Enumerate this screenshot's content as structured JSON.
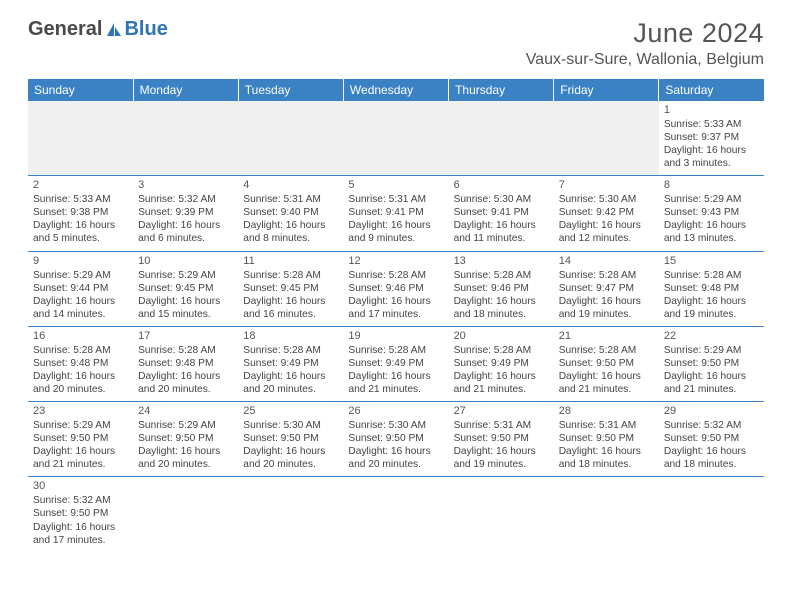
{
  "logo": {
    "text1": "General",
    "text2": "Blue"
  },
  "header": {
    "month_title": "June 2024",
    "location": "Vaux-sur-Sure, Wallonia, Belgium"
  },
  "colors": {
    "header_bg": "#3a82c4",
    "header_text": "#ffffff",
    "cell_border": "#3a82c4",
    "blank_bg": "#f0f0f0",
    "text": "#444444",
    "logo_gray": "#4a4a4a",
    "logo_blue": "#2d74b8"
  },
  "daynames": [
    "Sunday",
    "Monday",
    "Tuesday",
    "Wednesday",
    "Thursday",
    "Friday",
    "Saturday"
  ],
  "weeks": [
    [
      null,
      null,
      null,
      null,
      null,
      null,
      {
        "n": "1",
        "sr": "Sunrise: 5:33 AM",
        "ss": "Sunset: 9:37 PM",
        "d1": "Daylight: 16 hours",
        "d2": "and 3 minutes."
      }
    ],
    [
      {
        "n": "2",
        "sr": "Sunrise: 5:33 AM",
        "ss": "Sunset: 9:38 PM",
        "d1": "Daylight: 16 hours",
        "d2": "and 5 minutes."
      },
      {
        "n": "3",
        "sr": "Sunrise: 5:32 AM",
        "ss": "Sunset: 9:39 PM",
        "d1": "Daylight: 16 hours",
        "d2": "and 6 minutes."
      },
      {
        "n": "4",
        "sr": "Sunrise: 5:31 AM",
        "ss": "Sunset: 9:40 PM",
        "d1": "Daylight: 16 hours",
        "d2": "and 8 minutes."
      },
      {
        "n": "5",
        "sr": "Sunrise: 5:31 AM",
        "ss": "Sunset: 9:41 PM",
        "d1": "Daylight: 16 hours",
        "d2": "and 9 minutes."
      },
      {
        "n": "6",
        "sr": "Sunrise: 5:30 AM",
        "ss": "Sunset: 9:41 PM",
        "d1": "Daylight: 16 hours",
        "d2": "and 11 minutes."
      },
      {
        "n": "7",
        "sr": "Sunrise: 5:30 AM",
        "ss": "Sunset: 9:42 PM",
        "d1": "Daylight: 16 hours",
        "d2": "and 12 minutes."
      },
      {
        "n": "8",
        "sr": "Sunrise: 5:29 AM",
        "ss": "Sunset: 9:43 PM",
        "d1": "Daylight: 16 hours",
        "d2": "and 13 minutes."
      }
    ],
    [
      {
        "n": "9",
        "sr": "Sunrise: 5:29 AM",
        "ss": "Sunset: 9:44 PM",
        "d1": "Daylight: 16 hours",
        "d2": "and 14 minutes."
      },
      {
        "n": "10",
        "sr": "Sunrise: 5:29 AM",
        "ss": "Sunset: 9:45 PM",
        "d1": "Daylight: 16 hours",
        "d2": "and 15 minutes."
      },
      {
        "n": "11",
        "sr": "Sunrise: 5:28 AM",
        "ss": "Sunset: 9:45 PM",
        "d1": "Daylight: 16 hours",
        "d2": "and 16 minutes."
      },
      {
        "n": "12",
        "sr": "Sunrise: 5:28 AM",
        "ss": "Sunset: 9:46 PM",
        "d1": "Daylight: 16 hours",
        "d2": "and 17 minutes."
      },
      {
        "n": "13",
        "sr": "Sunrise: 5:28 AM",
        "ss": "Sunset: 9:46 PM",
        "d1": "Daylight: 16 hours",
        "d2": "and 18 minutes."
      },
      {
        "n": "14",
        "sr": "Sunrise: 5:28 AM",
        "ss": "Sunset: 9:47 PM",
        "d1": "Daylight: 16 hours",
        "d2": "and 19 minutes."
      },
      {
        "n": "15",
        "sr": "Sunrise: 5:28 AM",
        "ss": "Sunset: 9:48 PM",
        "d1": "Daylight: 16 hours",
        "d2": "and 19 minutes."
      }
    ],
    [
      {
        "n": "16",
        "sr": "Sunrise: 5:28 AM",
        "ss": "Sunset: 9:48 PM",
        "d1": "Daylight: 16 hours",
        "d2": "and 20 minutes."
      },
      {
        "n": "17",
        "sr": "Sunrise: 5:28 AM",
        "ss": "Sunset: 9:48 PM",
        "d1": "Daylight: 16 hours",
        "d2": "and 20 minutes."
      },
      {
        "n": "18",
        "sr": "Sunrise: 5:28 AM",
        "ss": "Sunset: 9:49 PM",
        "d1": "Daylight: 16 hours",
        "d2": "and 20 minutes."
      },
      {
        "n": "19",
        "sr": "Sunrise: 5:28 AM",
        "ss": "Sunset: 9:49 PM",
        "d1": "Daylight: 16 hours",
        "d2": "and 21 minutes."
      },
      {
        "n": "20",
        "sr": "Sunrise: 5:28 AM",
        "ss": "Sunset: 9:49 PM",
        "d1": "Daylight: 16 hours",
        "d2": "and 21 minutes."
      },
      {
        "n": "21",
        "sr": "Sunrise: 5:28 AM",
        "ss": "Sunset: 9:50 PM",
        "d1": "Daylight: 16 hours",
        "d2": "and 21 minutes."
      },
      {
        "n": "22",
        "sr": "Sunrise: 5:29 AM",
        "ss": "Sunset: 9:50 PM",
        "d1": "Daylight: 16 hours",
        "d2": "and 21 minutes."
      }
    ],
    [
      {
        "n": "23",
        "sr": "Sunrise: 5:29 AM",
        "ss": "Sunset: 9:50 PM",
        "d1": "Daylight: 16 hours",
        "d2": "and 21 minutes."
      },
      {
        "n": "24",
        "sr": "Sunrise: 5:29 AM",
        "ss": "Sunset: 9:50 PM",
        "d1": "Daylight: 16 hours",
        "d2": "and 20 minutes."
      },
      {
        "n": "25",
        "sr": "Sunrise: 5:30 AM",
        "ss": "Sunset: 9:50 PM",
        "d1": "Daylight: 16 hours",
        "d2": "and 20 minutes."
      },
      {
        "n": "26",
        "sr": "Sunrise: 5:30 AM",
        "ss": "Sunset: 9:50 PM",
        "d1": "Daylight: 16 hours",
        "d2": "and 20 minutes."
      },
      {
        "n": "27",
        "sr": "Sunrise: 5:31 AM",
        "ss": "Sunset: 9:50 PM",
        "d1": "Daylight: 16 hours",
        "d2": "and 19 minutes."
      },
      {
        "n": "28",
        "sr": "Sunrise: 5:31 AM",
        "ss": "Sunset: 9:50 PM",
        "d1": "Daylight: 16 hours",
        "d2": "and 18 minutes."
      },
      {
        "n": "29",
        "sr": "Sunrise: 5:32 AM",
        "ss": "Sunset: 9:50 PM",
        "d1": "Daylight: 16 hours",
        "d2": "and 18 minutes."
      }
    ],
    [
      {
        "n": "30",
        "sr": "Sunrise: 5:32 AM",
        "ss": "Sunset: 9:50 PM",
        "d1": "Daylight: 16 hours",
        "d2": "and 17 minutes."
      },
      null,
      null,
      null,
      null,
      null,
      null
    ]
  ]
}
